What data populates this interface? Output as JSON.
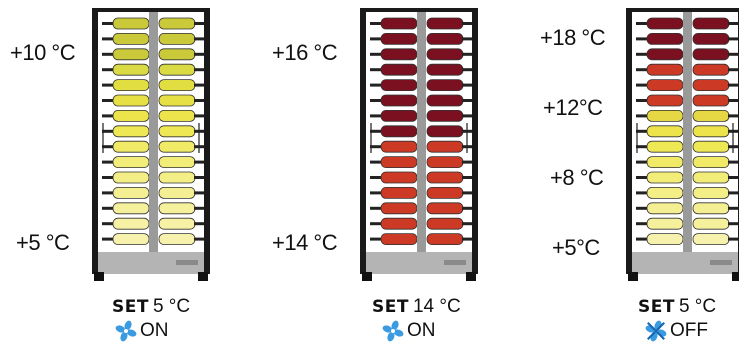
{
  "cabinets": [
    {
      "labels": [
        "+10 °C",
        "+5 °C"
      ],
      "set_word": "SET",
      "set_value": "5 °C",
      "fan_status": "ON",
      "fan_icon": "fan-icon",
      "fan_color": "#3b9be0",
      "shelf_colors": [
        "#c9c93a",
        "#c9c93a",
        "#c9c93a",
        "#dada45",
        "#e0de40",
        "#e6e045",
        "#ece44a",
        "#efe855",
        "#f0ea66",
        "#f2ec78",
        "#f3ee86",
        "#f4ef92",
        "#f5f09c",
        "#f6f1a5",
        "#f6f2ae"
      ]
    },
    {
      "labels": [
        "+16 °C",
        "+14 °C"
      ],
      "set_word": "SET",
      "set_value": "14 °C",
      "fan_status": "ON",
      "fan_icon": "fan-icon",
      "fan_color": "#3b9be0",
      "shelf_colors": [
        "#7a1020",
        "#7a1020",
        "#7a1020",
        "#7a1020",
        "#7a1020",
        "#7a1020",
        "#7a1020",
        "#7a1020",
        "#cc3a25",
        "#cc3a25",
        "#cc3a25",
        "#cc3a25",
        "#cc3a25",
        "#cc3a25",
        "#cc3a25"
      ]
    },
    {
      "labels": [
        "+18 °C",
        "+12°C",
        "+8 °C",
        "+5°C"
      ],
      "set_word": "SET",
      "set_value": "5 °C",
      "fan_status": "OFF",
      "fan_icon": "fan-off-icon",
      "fan_color": "#3b9be0",
      "shelf_colors": [
        "#7a1020",
        "#7a1020",
        "#7a1020",
        "#cc3a25",
        "#cc3a25",
        "#cc3a25",
        "#e6d845",
        "#ece44a",
        "#efe855",
        "#f0ea66",
        "#f2ec78",
        "#f3ee86",
        "#f4ef92",
        "#f5f09c",
        "#f6f2ae"
      ]
    }
  ]
}
